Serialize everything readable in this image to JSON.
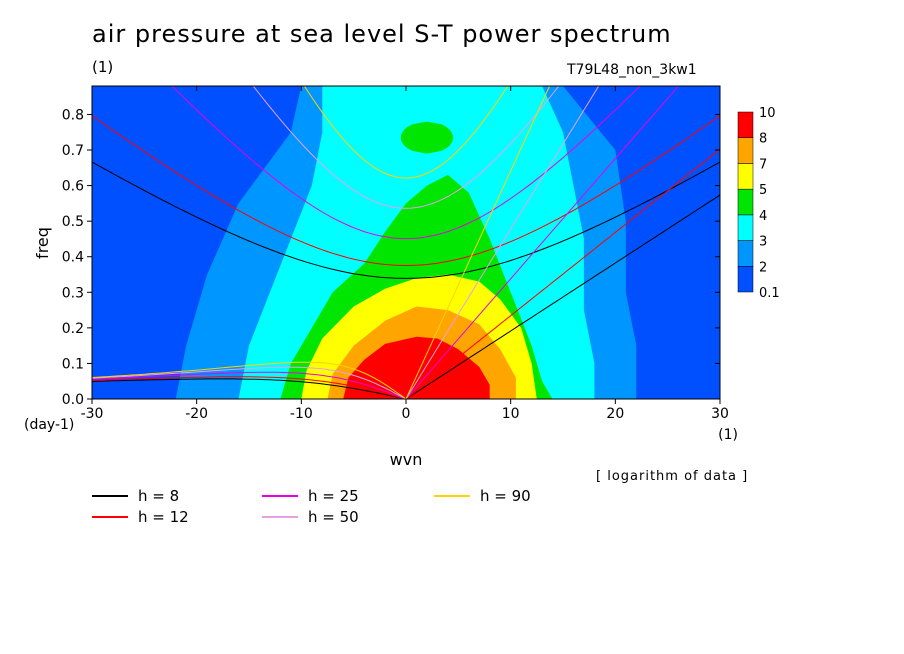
{
  "title": "air pressure at sea level S-T power spectrum",
  "unit_label": "(1)",
  "experiment": "T79L48_non_3kw1",
  "note": "[ logarithm of data ]",
  "chart_data": {
    "type": "heatmap",
    "xlabel": "wvn",
    "xunit": "(1)",
    "ylabel": "freq",
    "yunit": "(day-1)",
    "xlim": [
      -30,
      30
    ],
    "ylim": [
      0,
      0.88
    ],
    "xticks": [
      "-30",
      "-20",
      "-10",
      "0",
      "10",
      "20",
      "30"
    ],
    "yticks": [
      "0.0",
      "0.1",
      "0.2",
      "0.3",
      "0.4",
      "0.5",
      "0.6",
      "0.7",
      "0.8"
    ],
    "colorbar": {
      "levels": [
        "0.1",
        "2",
        "3",
        "4",
        "5",
        "7",
        "8",
        "10"
      ],
      "colors": [
        "#0050ff",
        "#0096ff",
        "#00ffff",
        "#00e600",
        "#ffff00",
        "#ffa500",
        "#ff0000"
      ]
    },
    "log_data": true,
    "dispersion_legend": [
      {
        "label": "h =  8",
        "color": "#000000"
      },
      {
        "label": "h = 12",
        "color": "#ff0000"
      },
      {
        "label": "h = 25",
        "color": "#e600e6"
      },
      {
        "label": "h = 50",
        "color": "#e6a0e6"
      },
      {
        "label": "h = 90",
        "color": "#ffd200"
      }
    ]
  }
}
